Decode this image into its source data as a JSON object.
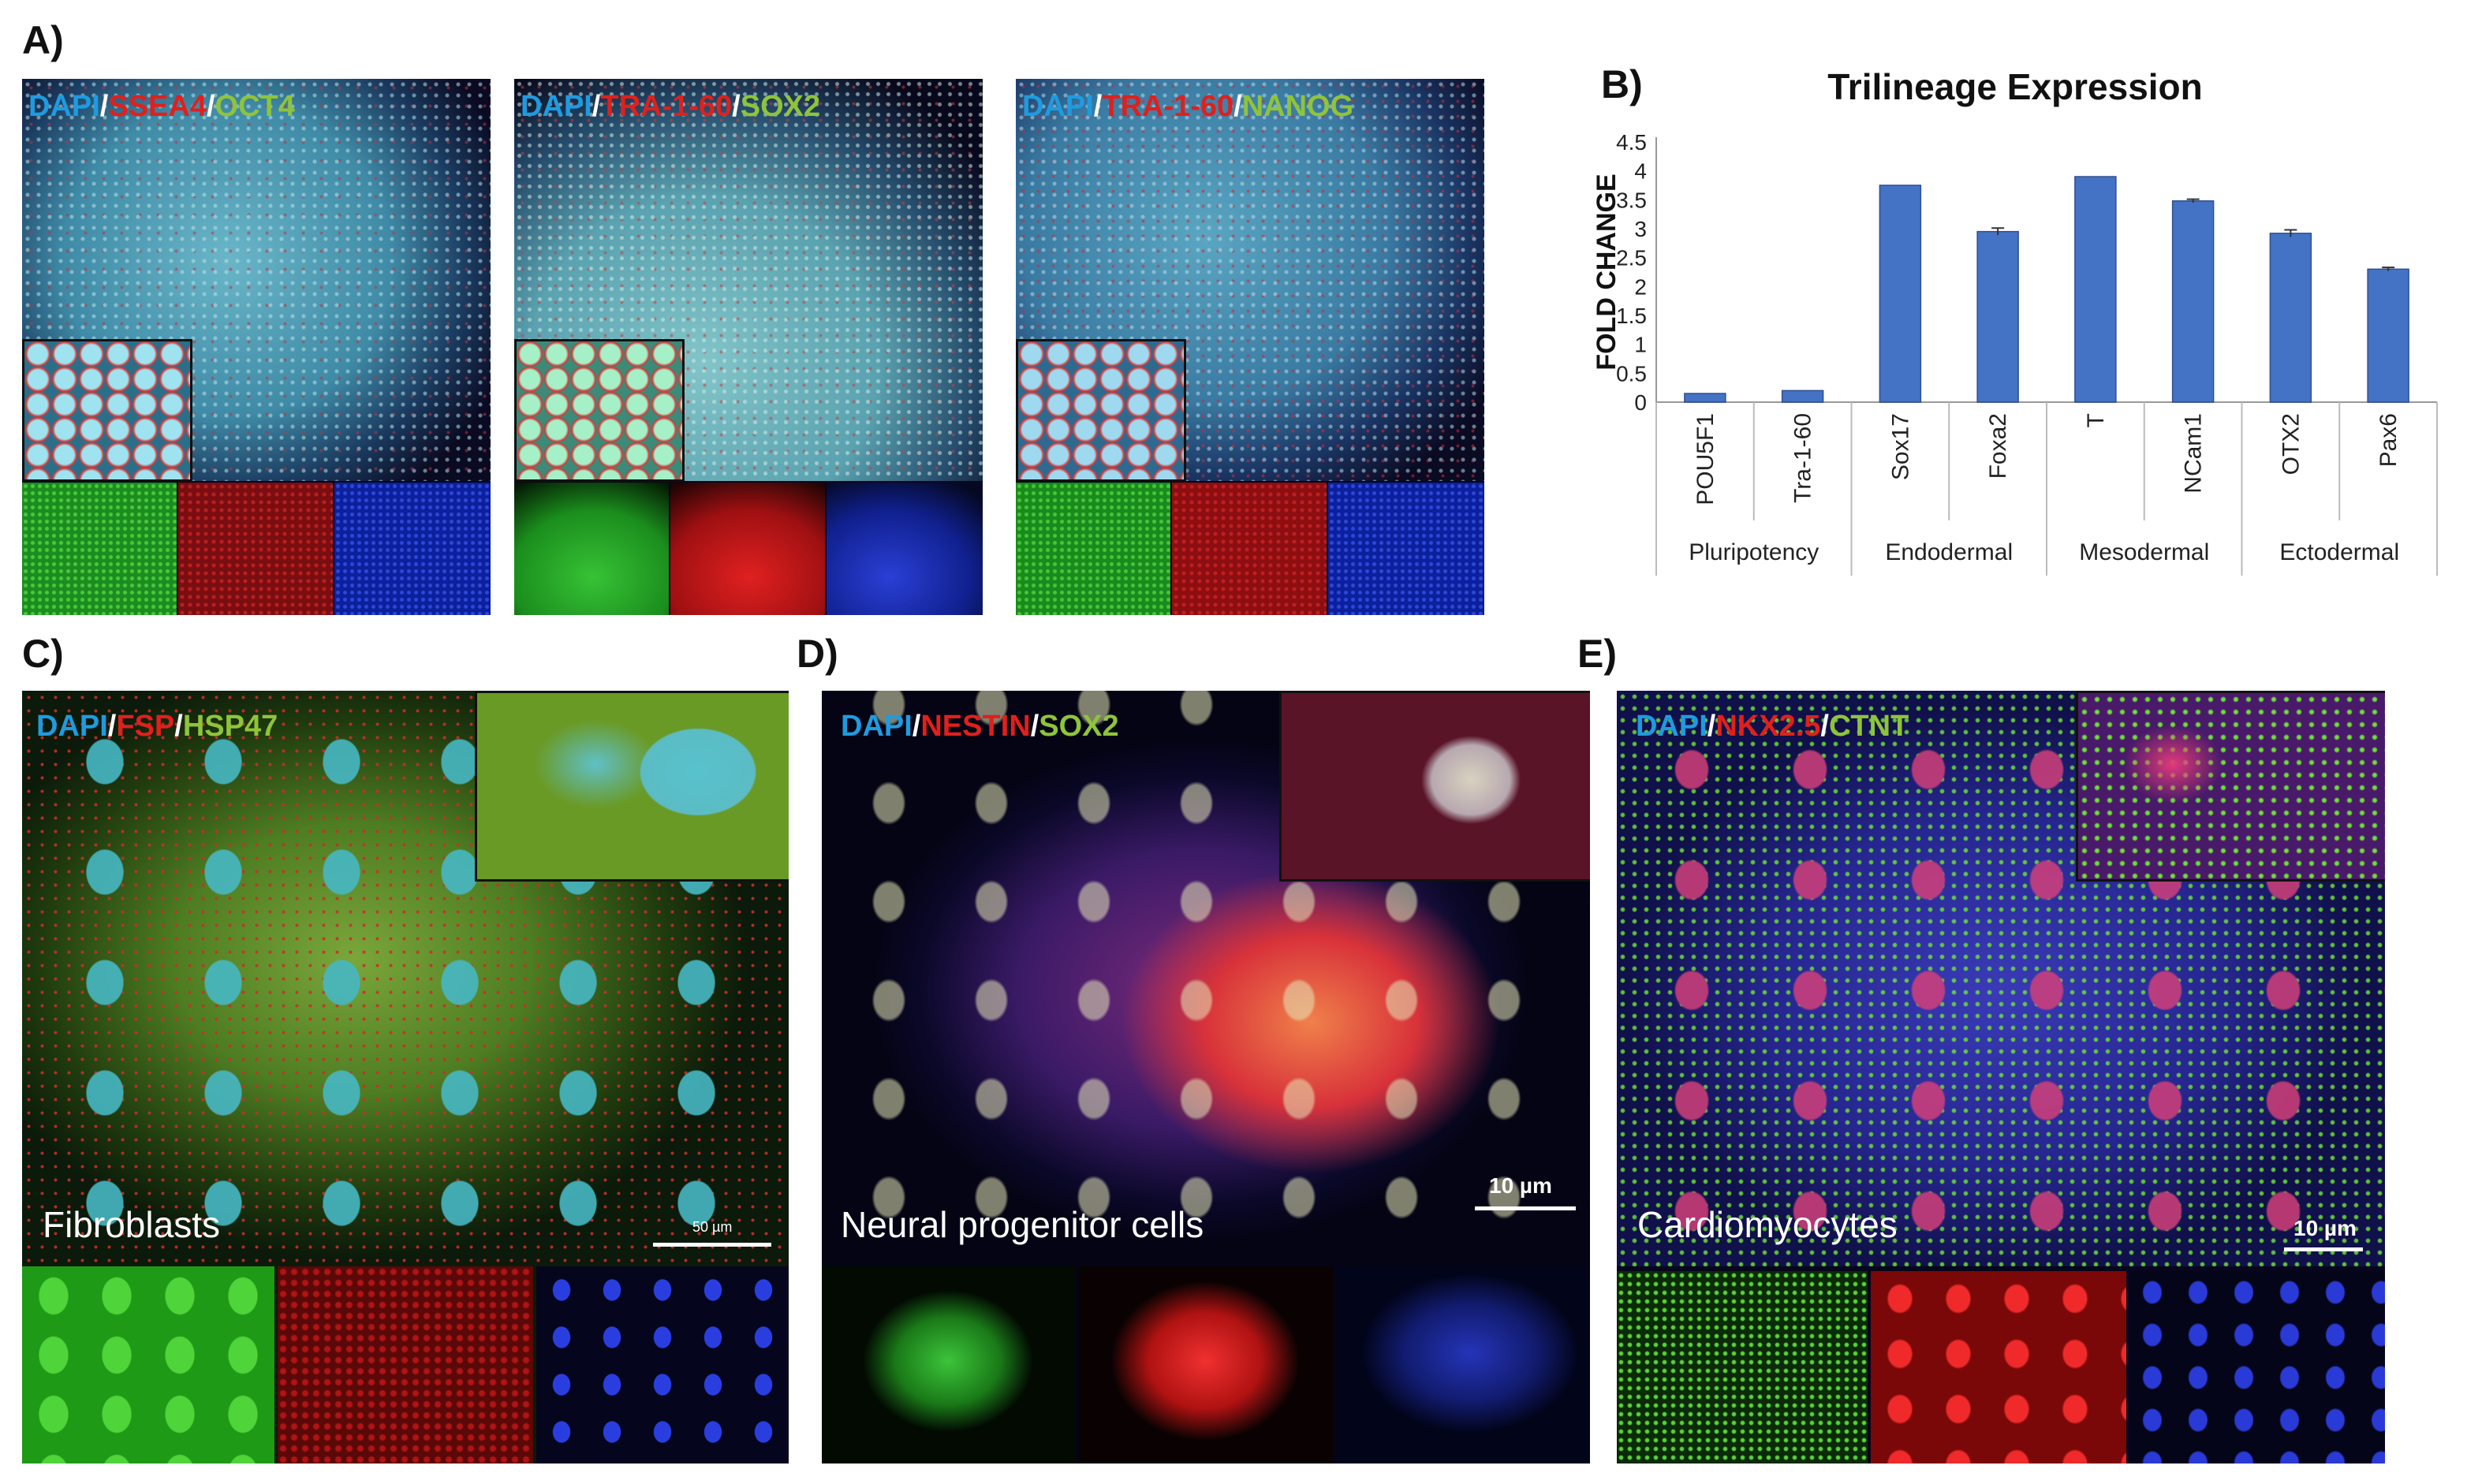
{
  "panels": {
    "A": {
      "label": "A)",
      "images": [
        {
          "stains": [
            {
              "text": "DAPI",
              "color": "blue"
            },
            {
              "text": "/",
              "color": "white"
            },
            {
              "text": "SSEA4",
              "color": "red"
            },
            {
              "text": "/",
              "color": "white"
            },
            {
              "text": "OCT4",
              "color": "green"
            }
          ]
        },
        {
          "stains": [
            {
              "text": "DAPI",
              "color": "blue"
            },
            {
              "text": "/",
              "color": "white"
            },
            {
              "text": "TRA-1-60",
              "color": "red"
            },
            {
              "text": "/",
              "color": "white"
            },
            {
              "text": "SOX2",
              "color": "green"
            }
          ]
        },
        {
          "stains": [
            {
              "text": "DAPI",
              "color": "blue"
            },
            {
              "text": "/",
              "color": "white"
            },
            {
              "text": "TRA-1-60",
              "color": "red"
            },
            {
              "text": "/",
              "color": "white"
            },
            {
              "text": "NANOG",
              "color": "green"
            }
          ]
        }
      ]
    },
    "B": {
      "label": "B)"
    },
    "C": {
      "label": "C)",
      "stains": [
        {
          "text": "DAPI",
          "color": "blue"
        },
        {
          "text": "/",
          "color": "white"
        },
        {
          "text": "FSP",
          "color": "red"
        },
        {
          "text": "/",
          "color": "white"
        },
        {
          "text": "HSP47",
          "color": "green"
        }
      ],
      "cell_type": "Fibroblasts",
      "scale": "50 µm"
    },
    "D": {
      "label": "D)",
      "stains": [
        {
          "text": "DAPI",
          "color": "blue"
        },
        {
          "text": "/",
          "color": "white"
        },
        {
          "text": "NESTIN",
          "color": "red"
        },
        {
          "text": "/",
          "color": "white"
        },
        {
          "text": "SOX2",
          "color": "green"
        }
      ],
      "cell_type": "Neural progenitor cells",
      "scale": "10 µm"
    },
    "E": {
      "label": "E)",
      "stains": [
        {
          "text": "DAPI",
          "color": "blue"
        },
        {
          "text": "/",
          "color": "white"
        },
        {
          "text": "NKX2.5",
          "color": "red"
        },
        {
          "text": "/",
          "color": "white"
        },
        {
          "text": "CTNT",
          "color": "green"
        }
      ],
      "cell_type": "Cardiomyocytes",
      "scale": "10 µm"
    }
  },
  "colors": {
    "blue": "#1e9be0",
    "red": "#e0201c",
    "green": "#8fc43a",
    "white": "#ffffff",
    "bar": "#4472c4"
  },
  "chart_data": {
    "type": "bar",
    "title": "Trilineage Expression",
    "ylabel": "FOLD CHANGE",
    "xlabel": "",
    "ylim": [
      0,
      4.5
    ],
    "yticks": [
      "0",
      "0.5",
      "1",
      "1.5",
      "2",
      "2.5",
      "3",
      "3.5",
      "4",
      "4.5"
    ],
    "categories": [
      "POU5F1",
      "Tra-1-60",
      "Sox17",
      "Foxa2",
      "T",
      "NCam1",
      "OTX2",
      "Pax6"
    ],
    "values": [
      0.15,
      0.2,
      3.75,
      2.95,
      3.9,
      3.48,
      2.92,
      2.3
    ],
    "errors": [
      0,
      0,
      0,
      0.06,
      0,
      0.03,
      0.06,
      0.03
    ],
    "groups": [
      {
        "name": "Pluripotency",
        "span": [
          0,
          1
        ]
      },
      {
        "name": "Endodermal",
        "span": [
          2,
          3
        ]
      },
      {
        "name": "Mesodermal",
        "span": [
          4,
          5
        ]
      },
      {
        "name": "Ectodermal",
        "span": [
          6,
          7
        ]
      }
    ],
    "grid": false,
    "legend": "none"
  }
}
